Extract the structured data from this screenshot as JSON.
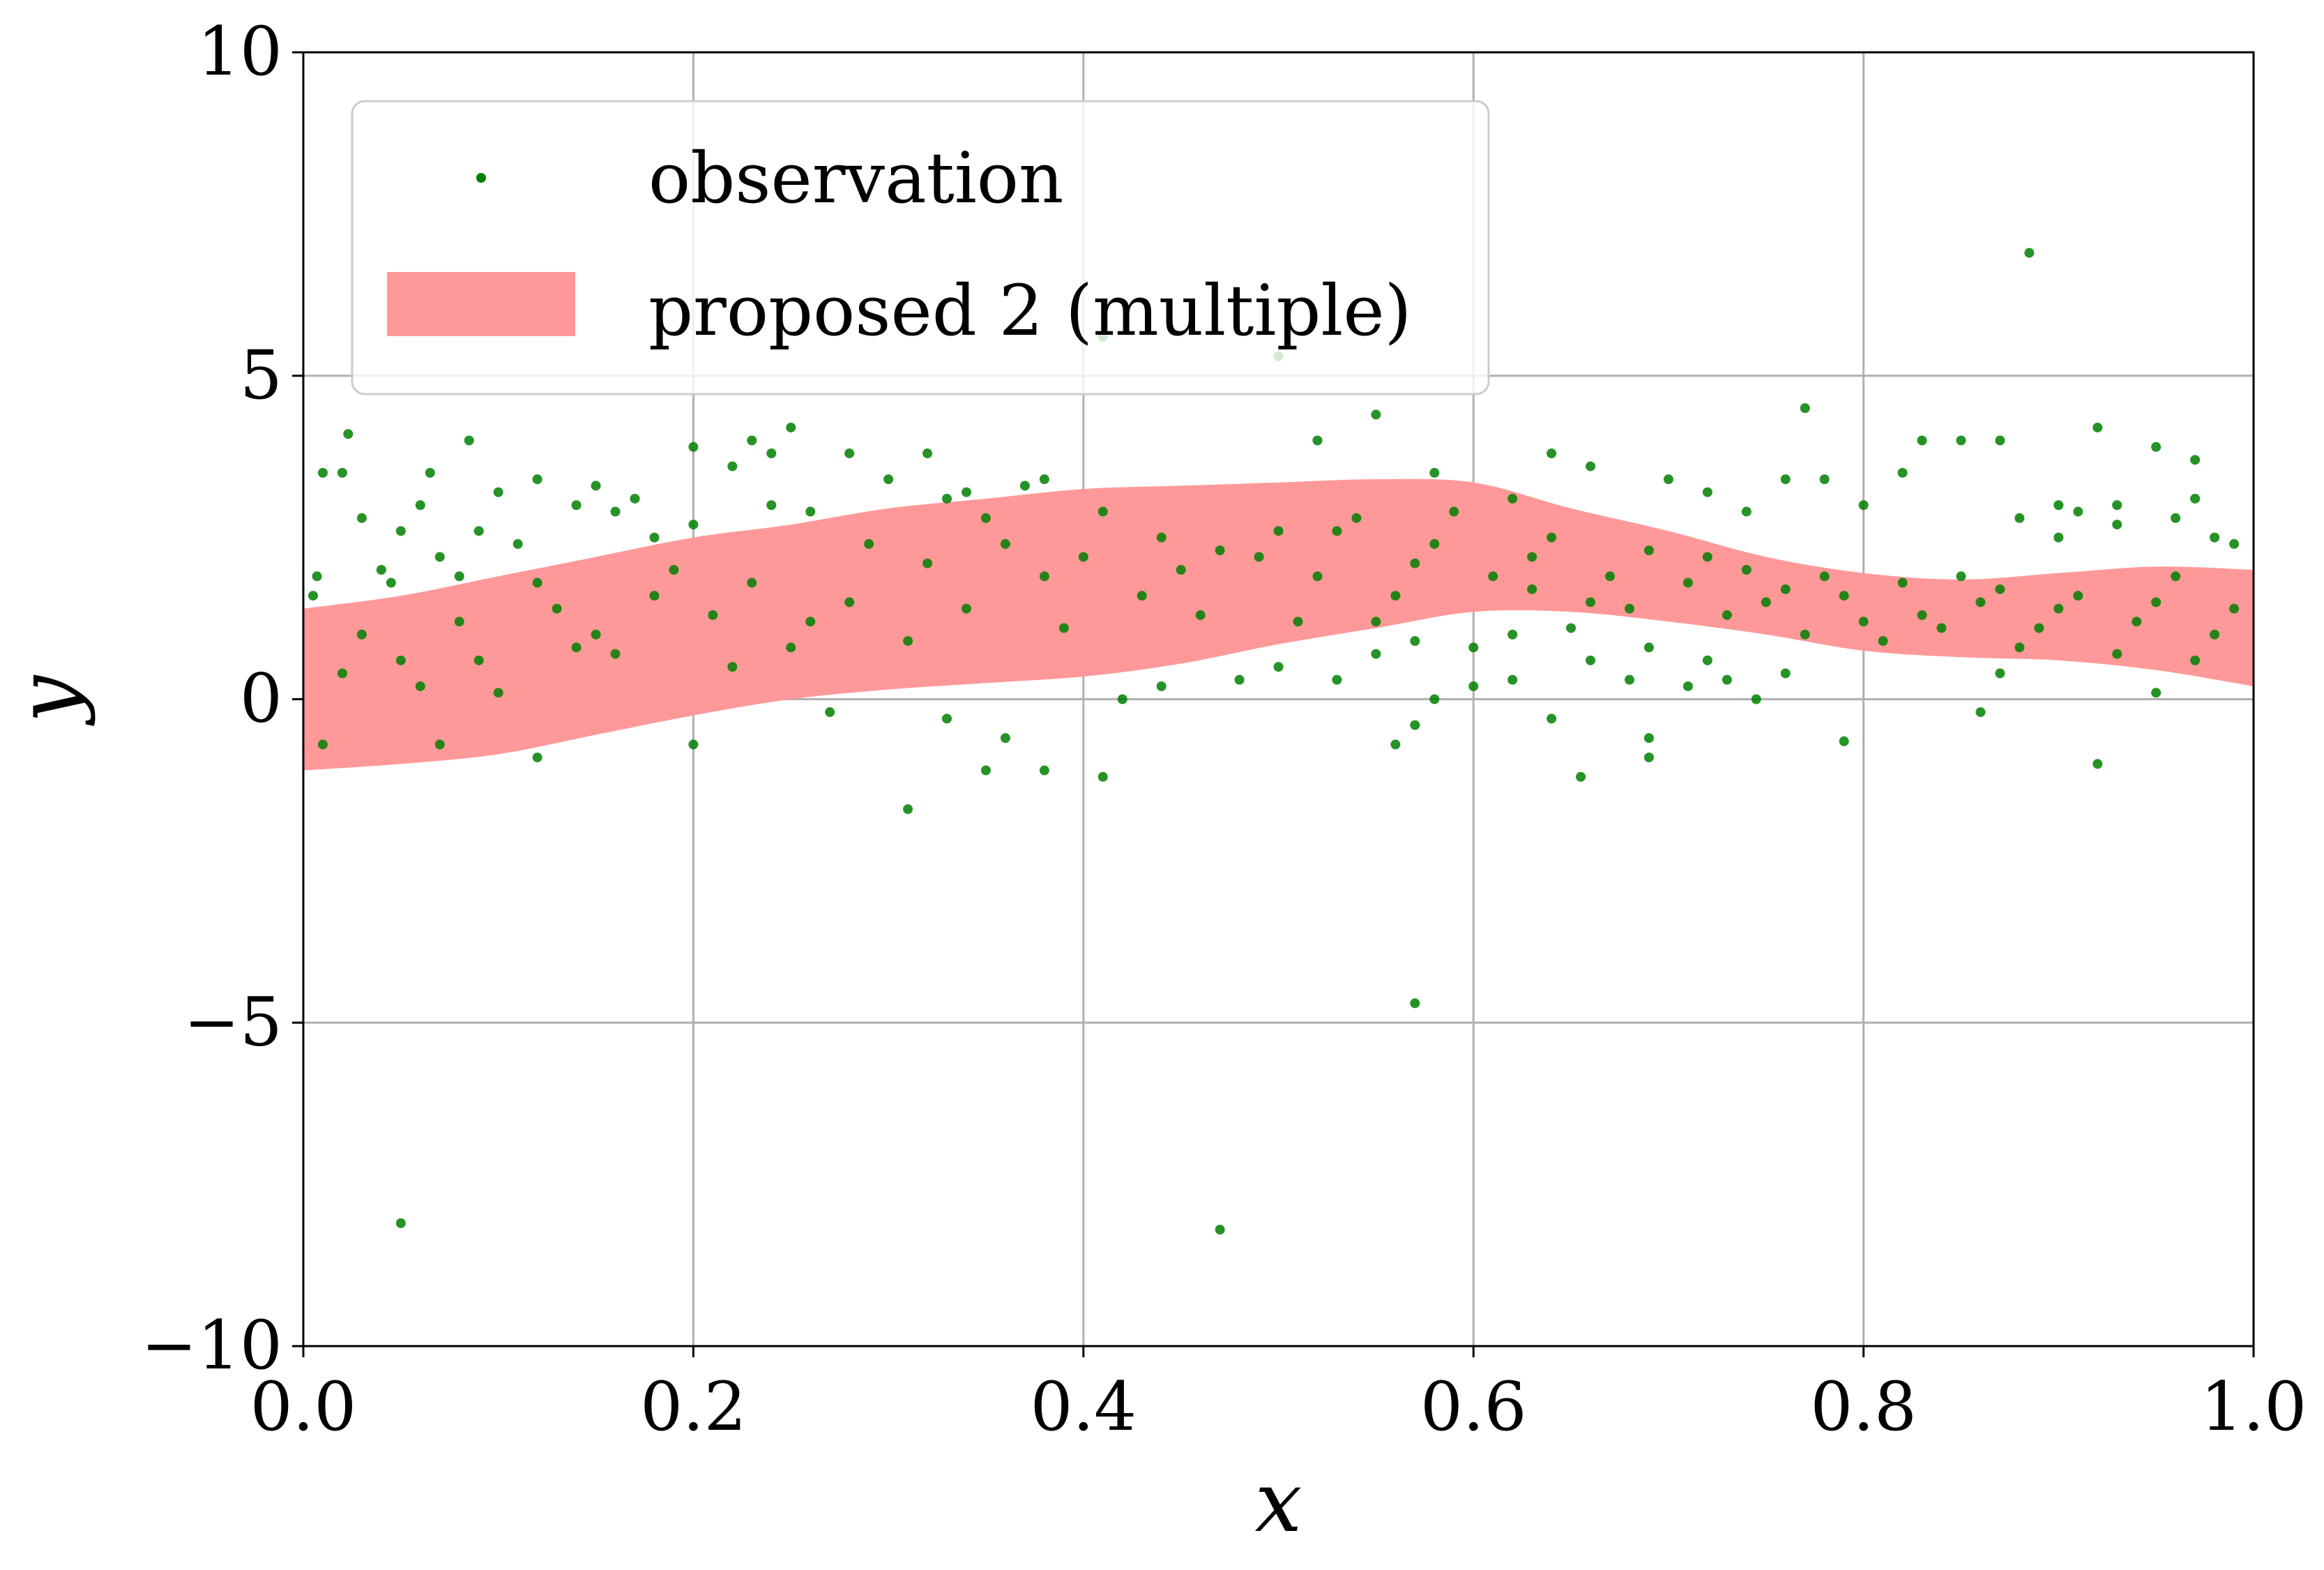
{
  "chart_data": {
    "type": "scatter",
    "xlabel": "x",
    "ylabel": "y",
    "xlim": [
      0.0,
      1.0
    ],
    "ylim": [
      -10,
      10
    ],
    "x_ticks": [
      0.0,
      0.2,
      0.4,
      0.6,
      0.8,
      1.0
    ],
    "x_tick_labels": [
      "0.0",
      "0.2",
      "0.4",
      "0.6",
      "0.8",
      "1.0"
    ],
    "y_ticks": [
      -10,
      -5,
      0,
      5,
      10
    ],
    "y_tick_labels": [
      "−10",
      "−5",
      "0",
      "5",
      "10"
    ],
    "grid": true,
    "legend_position": "upper-left",
    "legend": [
      {
        "label": "observation",
        "kind": "marker",
        "color": "#008000"
      },
      {
        "label": "proposed 2 (multiple)",
        "kind": "patch",
        "color": "#ff9999"
      }
    ],
    "band": {
      "name": "proposed 2 (multiple)",
      "color": "#ff9999",
      "x": [
        0.0,
        0.05,
        0.1,
        0.15,
        0.2,
        0.25,
        0.3,
        0.35,
        0.4,
        0.45,
        0.5,
        0.55,
        0.6,
        0.65,
        0.7,
        0.75,
        0.8,
        0.85,
        0.9,
        0.95,
        1.0
      ],
      "upper": [
        1.4,
        1.6,
        1.9,
        2.2,
        2.5,
        2.7,
        2.95,
        3.1,
        3.25,
        3.3,
        3.35,
        3.4,
        3.35,
        2.95,
        2.6,
        2.2,
        1.95,
        1.85,
        1.95,
        2.05,
        2.0
      ],
      "lower": [
        -1.1,
        -1.0,
        -0.85,
        -0.55,
        -0.25,
        0.0,
        0.15,
        0.25,
        0.35,
        0.55,
        0.85,
        1.1,
        1.35,
        1.35,
        1.2,
        1.0,
        0.75,
        0.65,
        0.6,
        0.45,
        0.2
      ]
    },
    "series": [
      {
        "name": "observation",
        "color": "#008000",
        "points": [
          [
            0.007,
            1.9
          ],
          [
            0.01,
            3.5
          ],
          [
            0.02,
            3.5
          ],
          [
            0.023,
            4.1
          ],
          [
            0.04,
            2.0
          ],
          [
            0.045,
            1.8
          ],
          [
            0.06,
            3.0
          ],
          [
            0.065,
            3.5
          ],
          [
            0.08,
            1.9
          ],
          [
            0.085,
            4.0
          ],
          [
            0.1,
            3.2
          ],
          [
            0.12,
            3.4
          ],
          [
            0.14,
            3.0
          ],
          [
            0.16,
            2.9
          ],
          [
            0.18,
            2.5
          ],
          [
            0.2,
            3.9
          ],
          [
            0.22,
            3.6
          ],
          [
            0.23,
            4.0
          ],
          [
            0.24,
            3.8
          ],
          [
            0.25,
            4.2
          ],
          [
            0.28,
            3.8
          ],
          [
            0.32,
            3.8
          ],
          [
            0.34,
            3.2
          ],
          [
            0.38,
            3.4
          ],
          [
            0.41,
            5.6
          ],
          [
            0.5,
            5.3
          ],
          [
            0.52,
            4.0
          ],
          [
            0.55,
            4.4
          ],
          [
            0.58,
            3.5
          ],
          [
            0.62,
            3.1
          ],
          [
            0.64,
            3.8
          ],
          [
            0.66,
            3.6
          ],
          [
            0.7,
            3.4
          ],
          [
            0.72,
            3.2
          ],
          [
            0.74,
            2.9
          ],
          [
            0.76,
            3.4
          ],
          [
            0.77,
            4.5
          ],
          [
            0.78,
            3.4
          ],
          [
            0.8,
            3.0
          ],
          [
            0.82,
            3.5
          ],
          [
            0.83,
            4.0
          ],
          [
            0.85,
            4.0
          ],
          [
            0.87,
            4.0
          ],
          [
            0.885,
            6.9
          ],
          [
            0.9,
            3.0
          ],
          [
            0.92,
            4.2
          ],
          [
            0.93,
            3.0
          ],
          [
            0.95,
            3.9
          ],
          [
            0.97,
            3.7
          ],
          [
            0.98,
            2.5
          ],
          [
            0.05,
            -8.1
          ],
          [
            0.47,
            -8.2
          ],
          [
            0.57,
            -4.7
          ],
          [
            0.31,
            -1.7
          ],
          [
            0.12,
            -0.9
          ],
          [
            0.35,
            -1.1
          ],
          [
            0.38,
            -1.1
          ],
          [
            0.41,
            -1.2
          ],
          [
            0.36,
            -0.6
          ],
          [
            0.57,
            -0.4
          ],
          [
            0.56,
            -0.7
          ],
          [
            0.655,
            -1.2
          ],
          [
            0.69,
            -0.6
          ],
          [
            0.69,
            -0.9
          ],
          [
            0.79,
            -0.65
          ],
          [
            0.92,
            -1.0
          ],
          [
            0.86,
            -0.2
          ],
          [
            0.64,
            -0.3
          ],
          [
            0.6,
            0.2
          ],
          [
            0.58,
            0.0
          ],
          [
            0.62,
            0.3
          ],
          [
            0.66,
            0.6
          ],
          [
            0.68,
            0.3
          ],
          [
            0.71,
            0.2
          ],
          [
            0.73,
            0.3
          ],
          [
            0.745,
            0.0
          ],
          [
            0.76,
            0.4
          ],
          [
            0.6,
            0.8
          ],
          [
            0.57,
            0.9
          ],
          [
            0.55,
            0.7
          ],
          [
            0.53,
            0.3
          ],
          [
            0.55,
            1.2
          ],
          [
            0.62,
            1.0
          ],
          [
            0.65,
            1.1
          ],
          [
            0.69,
            0.8
          ],
          [
            0.72,
            0.6
          ],
          [
            0.87,
            0.4
          ],
          [
            0.88,
            2.8
          ],
          [
            0.9,
            2.5
          ],
          [
            0.91,
            2.9
          ],
          [
            0.93,
            2.7
          ],
          [
            0.96,
            2.8
          ],
          [
            0.97,
            3.1
          ],
          [
            0.99,
            2.4
          ],
          [
            0.95,
            0.1
          ],
          [
            0.005,
            1.6
          ],
          [
            0.03,
            2.8
          ],
          [
            0.05,
            2.6
          ],
          [
            0.07,
            2.2
          ],
          [
            0.09,
            2.6
          ],
          [
            0.11,
            2.4
          ],
          [
            0.15,
            3.3
          ],
          [
            0.17,
            3.1
          ],
          [
            0.3,
            3.4
          ],
          [
            0.33,
            3.1
          ],
          [
            0.37,
            3.3
          ],
          [
            0.2,
            2.7
          ],
          [
            0.24,
            3.0
          ],
          [
            0.26,
            2.9
          ],
          [
            0.42,
            0.0
          ],
          [
            0.44,
            0.2
          ],
          [
            0.48,
            0.3
          ],
          [
            0.5,
            0.5
          ],
          [
            0.33,
            -0.3
          ],
          [
            0.27,
            -0.2
          ],
          [
            0.2,
            -0.7
          ],
          [
            0.07,
            -0.7
          ],
          [
            0.01,
            -0.7
          ],
          [
            0.1,
            0.1
          ],
          [
            0.05,
            0.6
          ],
          [
            0.14,
            0.8
          ],
          [
            0.22,
            0.5
          ],
          [
            0.03,
            1.0
          ],
          [
            0.08,
            1.2
          ],
          [
            0.13,
            1.4
          ],
          [
            0.18,
            1.6
          ],
          [
            0.23,
            1.8
          ],
          [
            0.28,
            1.5
          ],
          [
            0.32,
            2.1
          ],
          [
            0.36,
            2.4
          ],
          [
            0.4,
            2.2
          ],
          [
            0.44,
            2.5
          ],
          [
            0.47,
            2.3
          ],
          [
            0.5,
            2.6
          ],
          [
            0.54,
            2.8
          ],
          [
            0.58,
            2.4
          ],
          [
            0.63,
            2.2
          ],
          [
            0.67,
            1.9
          ],
          [
            0.71,
            1.8
          ],
          [
            0.75,
            1.5
          ],
          [
            0.79,
            1.6
          ],
          [
            0.83,
            1.3
          ],
          [
            0.86,
            1.5
          ],
          [
            0.9,
            1.4
          ],
          [
            0.94,
            1.2
          ],
          [
            0.98,
            1.0
          ],
          [
            0.06,
            0.2
          ],
          [
            0.16,
            0.7
          ],
          [
            0.26,
            1.2
          ],
          [
            0.31,
            0.9
          ],
          [
            0.39,
            1.1
          ],
          [
            0.43,
            1.6
          ],
          [
            0.46,
            1.3
          ],
          [
            0.52,
            1.9
          ],
          [
            0.56,
            1.6
          ],
          [
            0.61,
            1.9
          ],
          [
            0.66,
            1.5
          ],
          [
            0.73,
            1.3
          ],
          [
            0.77,
            1.0
          ],
          [
            0.81,
            0.9
          ],
          [
            0.84,
            1.1
          ],
          [
            0.88,
            0.8
          ],
          [
            0.93,
            0.7
          ],
          [
            0.97,
            0.6
          ],
          [
            0.12,
            1.8
          ],
          [
            0.19,
            2.0
          ],
          [
            0.29,
            2.4
          ],
          [
            0.35,
            2.8
          ],
          [
            0.41,
            2.9
          ],
          [
            0.49,
            2.2
          ],
          [
            0.53,
            2.6
          ],
          [
            0.59,
            2.9
          ],
          [
            0.64,
            2.5
          ],
          [
            0.69,
            2.3
          ],
          [
            0.74,
            2.0
          ],
          [
            0.78,
            1.9
          ],
          [
            0.82,
            1.8
          ],
          [
            0.87,
            1.7
          ],
          [
            0.91,
            1.6
          ],
          [
            0.95,
            1.5
          ],
          [
            0.99,
            1.4
          ],
          [
            0.02,
            0.4
          ],
          [
            0.09,
            0.6
          ],
          [
            0.15,
            1.0
          ],
          [
            0.21,
            1.3
          ],
          [
            0.25,
            0.8
          ],
          [
            0.34,
            1.4
          ],
          [
            0.38,
            1.9
          ],
          [
            0.45,
            2.0
          ],
          [
            0.51,
            1.2
          ],
          [
            0.57,
            2.1
          ],
          [
            0.63,
            1.7
          ],
          [
            0.68,
            1.4
          ],
          [
            0.72,
            2.2
          ],
          [
            0.76,
            1.7
          ],
          [
            0.8,
            1.2
          ],
          [
            0.85,
            1.9
          ],
          [
            0.89,
            1.1
          ],
          [
            0.96,
            1.9
          ]
        ]
      }
    ]
  }
}
